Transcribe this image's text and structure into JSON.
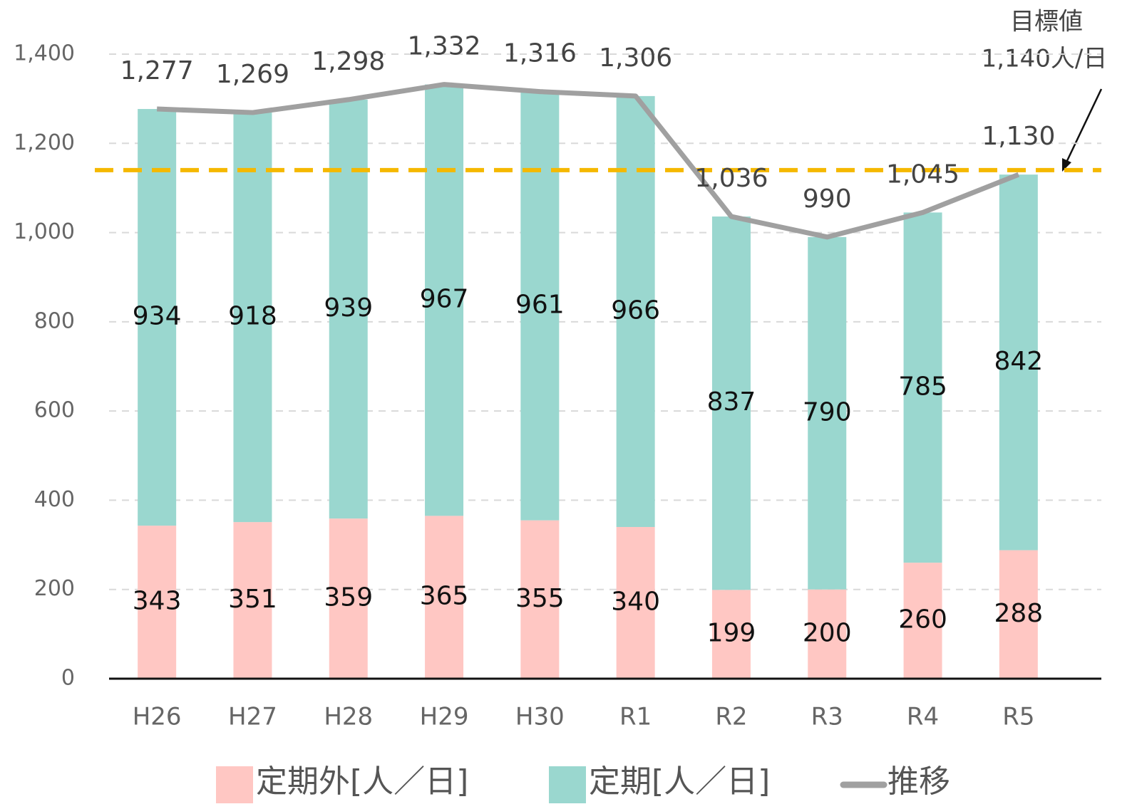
{
  "chart_data": {
    "type": "bar",
    "stacked": true,
    "categories": [
      "H26",
      "H27",
      "H28",
      "H29",
      "H30",
      "R1",
      "R2",
      "R3",
      "R4",
      "R5"
    ],
    "series": [
      {
        "name": "定期外[人／日]",
        "color": "#ffc7c3",
        "values": [
          343,
          351,
          359,
          365,
          355,
          340,
          199,
          200,
          260,
          288
        ]
      },
      {
        "name": "定期[人／日]",
        "color": "#9ad7cf",
        "values": [
          934,
          918,
          939,
          967,
          961,
          966,
          837,
          790,
          785,
          842
        ]
      },
      {
        "name": "推移",
        "type": "line",
        "color": "#a0a0a0",
        "values": [
          1277,
          1269,
          1298,
          1332,
          1316,
          1306,
          1036,
          990,
          1045,
          1130
        ],
        "value_labels": [
          "1,277",
          "1,269",
          "1,298",
          "1,332",
          "1,316",
          "1,306",
          "1,036",
          "990",
          "1,045",
          "1,130"
        ]
      }
    ],
    "ylim": [
      0,
      1400
    ],
    "yticks": [
      0,
      200,
      400,
      600,
      800,
      {
        "value": 1000,
        "label": "1,000"
      },
      {
        "value": 1200,
        "label": "1,200"
      },
      {
        "value": 1400,
        "label": "1,400"
      }
    ],
    "grid": true,
    "target": {
      "name": "目標値",
      "value": 1140,
      "label": "1,140人/日",
      "color": "#f5b800"
    },
    "legend": "bottom"
  }
}
